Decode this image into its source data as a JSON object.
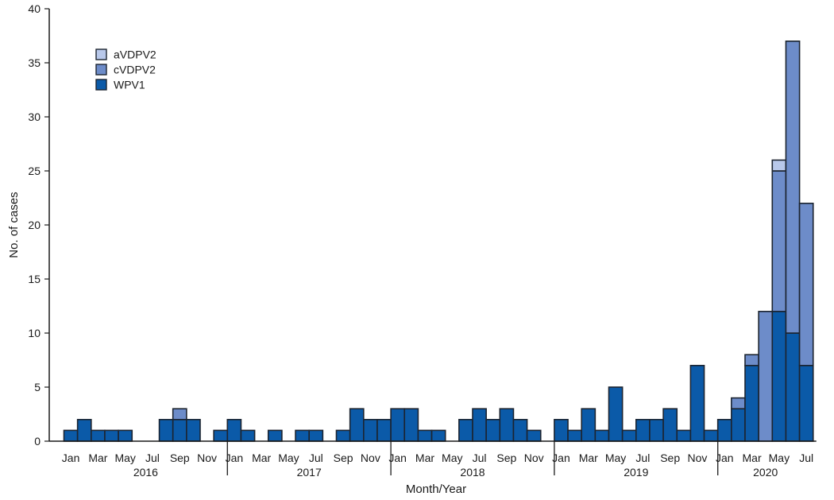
{
  "chart_data": {
    "type": "bar",
    "stacked": true,
    "ylabel": "No. of cases",
    "xlabel": "Month/Year",
    "ylim": [
      0,
      40
    ],
    "yticks": [
      0,
      5,
      10,
      15,
      20,
      25,
      30,
      35,
      40
    ],
    "years": [
      "2016",
      "2017",
      "2018",
      "2019",
      "2020"
    ],
    "month_tick_labels": [
      "Jan",
      "Mar",
      "May",
      "Jul",
      "Sep",
      "Nov"
    ],
    "months_2020_labels": [
      "Jan",
      "Mar",
      "May",
      "Jul"
    ],
    "legend": [
      {
        "name": "aVDPV2",
        "color": "#b8c8ea"
      },
      {
        "name": "cVDPV2",
        "color": "#6d8cc9"
      },
      {
        "name": "WPV1",
        "color": "#0b5aa8"
      }
    ],
    "series": [
      {
        "name": "WPV1",
        "color": "#0b5aa8",
        "values": [
          1,
          2,
          1,
          1,
          1,
          0,
          0,
          2,
          2,
          2,
          0,
          1,
          2,
          1,
          0,
          1,
          0,
          1,
          1,
          0,
          1,
          3,
          2,
          2,
          3,
          3,
          1,
          1,
          0,
          2,
          3,
          2,
          3,
          2,
          1,
          0,
          2,
          1,
          3,
          1,
          5,
          1,
          2,
          2,
          3,
          1,
          7,
          1,
          2,
          3,
          7,
          0,
          12,
          10,
          7
        ]
      },
      {
        "name": "cVDPV2",
        "color": "#6d8cc9",
        "values": [
          0,
          0,
          0,
          0,
          0,
          0,
          0,
          0,
          1,
          0,
          0,
          0,
          0,
          0,
          0,
          0,
          0,
          0,
          0,
          0,
          0,
          0,
          0,
          0,
          0,
          0,
          0,
          0,
          0,
          0,
          0,
          0,
          0,
          0,
          0,
          0,
          0,
          0,
          0,
          0,
          0,
          0,
          0,
          0,
          0,
          0,
          0,
          0,
          0,
          1,
          1,
          12,
          13,
          27,
          15
        ]
      },
      {
        "name": "aVDPV2",
        "color": "#b8c8ea",
        "values": [
          0,
          0,
          0,
          0,
          0,
          0,
          0,
          0,
          0,
          0,
          0,
          0,
          0,
          0,
          0,
          0,
          0,
          0,
          0,
          0,
          0,
          0,
          0,
          0,
          0,
          0,
          0,
          0,
          0,
          0,
          0,
          0,
          0,
          0,
          0,
          0,
          0,
          0,
          0,
          0,
          0,
          0,
          0,
          0,
          0,
          0,
          0,
          0,
          0,
          0,
          0,
          0,
          1,
          0,
          0
        ]
      }
    ]
  }
}
